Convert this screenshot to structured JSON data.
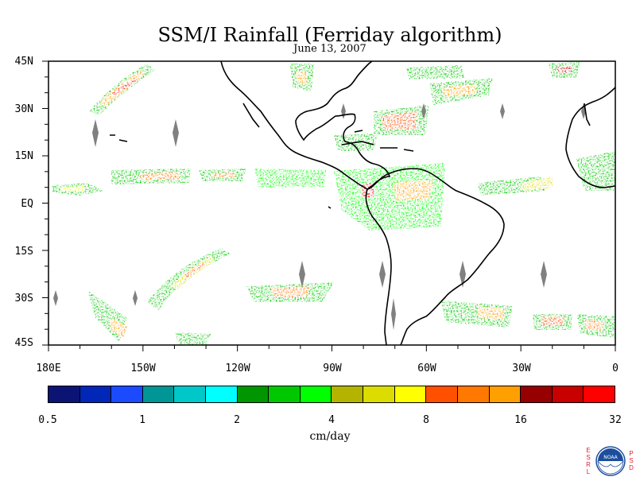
{
  "title": "SSM/I Rainfall (Ferriday algorithm)",
  "date": "June 13, 2007",
  "lat_labels": [
    "45N",
    "30N",
    "15N",
    "EQ",
    "15S",
    "30S",
    "45S"
  ],
  "lon_labels": [
    "180E",
    "150W",
    "120W",
    "90W",
    "60W",
    "30W",
    "0"
  ],
  "colorbar": {
    "colors": [
      "#0b1475",
      "#0027b8",
      "#1c4bff",
      "#009696",
      "#00c8c8",
      "#00ffff",
      "#009600",
      "#00c800",
      "#00ff00",
      "#b4b400",
      "#dcdc00",
      "#ffff00",
      "#ff5000",
      "#ff7800",
      "#ffa000",
      "#960000",
      "#c80000",
      "#ff0000"
    ],
    "tick_labels": [
      "0.5",
      "1",
      "2",
      "4",
      "8",
      "16",
      "32"
    ],
    "units": "cm/day"
  },
  "logo": {
    "center_text": "NOAA",
    "left_letters": "ESRL",
    "right_letters": "PSD"
  }
}
